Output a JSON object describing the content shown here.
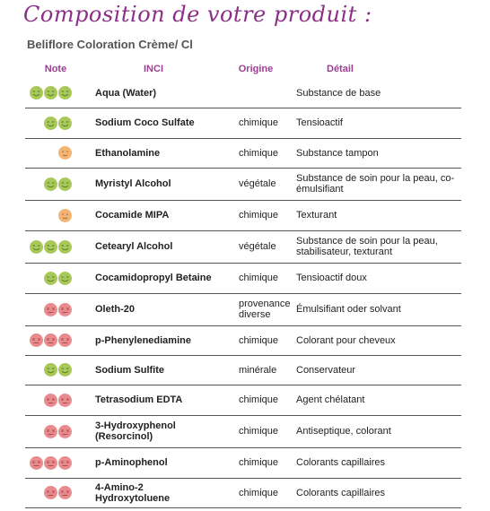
{
  "title": "Composition de votre produit :",
  "product_name": "Beliflore Coloration Crème/ Cl",
  "columns": {
    "note": "Note",
    "inci": "INCI",
    "origine": "Origine",
    "detail": "Détail"
  },
  "colors": {
    "green": "#a8c95a",
    "orange": "#f4b574",
    "red": "#e98b8e",
    "accent": "#8b2f87"
  },
  "rows": [
    {
      "rating": "green",
      "faces": 3,
      "inci": "Aqua (Water)",
      "origine": "",
      "detail": "Substance de base"
    },
    {
      "rating": "green",
      "faces": 2,
      "inci": "Sodium Coco Sulfate",
      "origine": "chimique",
      "detail": "Tensioactif"
    },
    {
      "rating": "orange",
      "faces": 1,
      "inci": "Ethanolamine",
      "origine": "chimique",
      "detail": "Substance tampon"
    },
    {
      "rating": "green",
      "faces": 2,
      "inci": "Myristyl Alcohol",
      "origine": "végétale",
      "detail": "Substance de soin pour la peau, co-émulsifiant"
    },
    {
      "rating": "orange",
      "faces": 1,
      "inci": "Cocamide MIPA",
      "origine": "chimique",
      "detail": "Texturant"
    },
    {
      "rating": "green",
      "faces": 3,
      "inci": "Cetearyl Alcohol",
      "origine": "végétale",
      "detail": "Substance de soin pour la peau, stabilisateur, texturant"
    },
    {
      "rating": "green",
      "faces": 2,
      "inci": "Cocamidopropyl Betaine",
      "origine": "chimique",
      "detail": "Tensioactif doux"
    },
    {
      "rating": "red",
      "faces": 2,
      "inci": "Oleth-20",
      "origine": "provenance diverse",
      "detail": "Émulsifiant oder solvant"
    },
    {
      "rating": "red",
      "faces": 3,
      "inci": "p-Phenylenediamine",
      "origine": "chimique",
      "detail": "Colorant pour cheveux"
    },
    {
      "rating": "green",
      "faces": 2,
      "inci": "Sodium Sulfite",
      "origine": "minérale",
      "detail": "Conservateur"
    },
    {
      "rating": "red",
      "faces": 2,
      "inci": "Tetrasodium EDTA",
      "origine": "chimique",
      "detail": "Agent chélatant"
    },
    {
      "rating": "red",
      "faces": 2,
      "inci": "3-Hydroxyphenol (Resorcinol)",
      "origine": "chimique",
      "detail": "Antiseptique, colorant"
    },
    {
      "rating": "red",
      "faces": 3,
      "inci": "p-Aminophenol",
      "origine": "chimique",
      "detail": "Colorants capillaires"
    },
    {
      "rating": "red",
      "faces": 2,
      "inci": "4-Amino-2 Hydroxytoluene",
      "origine": "chimique",
      "detail": "Colorants capillaires"
    }
  ]
}
